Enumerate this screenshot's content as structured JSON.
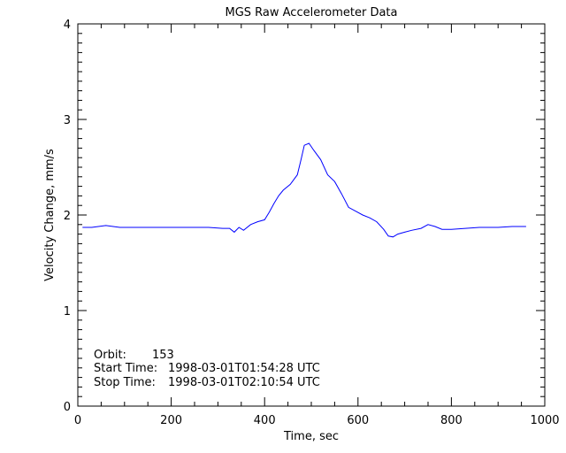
{
  "chart_data": {
    "type": "line",
    "title": "MGS Raw Accelerometer Data",
    "xlabel": "Time, sec",
    "ylabel": "Velocity Change, mm/s",
    "xlim": [
      0,
      1000
    ],
    "ylim": [
      0,
      4
    ],
    "xticks": [
      "0",
      "200",
      "400",
      "600",
      "800",
      "1000"
    ],
    "yticks": [
      "0",
      "1",
      "2",
      "3",
      "4"
    ],
    "grid": false,
    "line_color": "#0000ff",
    "series": [
      {
        "x": [
          10,
          30,
          60,
          90,
          120,
          160,
          200,
          240,
          280,
          310,
          325,
          335,
          345,
          355,
          370,
          385,
          400,
          410,
          420,
          430,
          440,
          455,
          470,
          478,
          485,
          495,
          505,
          520,
          535,
          550,
          565,
          580,
          595,
          610,
          625,
          640,
          655,
          665,
          675,
          685,
          700,
          715,
          735,
          750,
          765,
          780,
          800,
          830,
          860,
          900,
          930,
          960
        ],
        "y": [
          1.87,
          1.87,
          1.89,
          1.87,
          1.87,
          1.87,
          1.87,
          1.87,
          1.87,
          1.86,
          1.86,
          1.82,
          1.87,
          1.84,
          1.9,
          1.93,
          1.95,
          2.03,
          2.12,
          2.2,
          2.26,
          2.32,
          2.42,
          2.58,
          2.73,
          2.75,
          2.68,
          2.58,
          2.42,
          2.35,
          2.22,
          2.08,
          2.04,
          2.0,
          1.97,
          1.93,
          1.85,
          1.78,
          1.77,
          1.8,
          1.82,
          1.84,
          1.86,
          1.9,
          1.88,
          1.85,
          1.85,
          1.86,
          1.87,
          1.87,
          1.88,
          1.88
        ]
      }
    ],
    "annotations": [
      {
        "label": "Orbit:",
        "value": "153"
      },
      {
        "label": "Start Time:",
        "value": "1998-03-01T01:54:28 UTC"
      },
      {
        "label": "Stop Time:",
        "value": "1998-03-01T02:10:54 UTC"
      }
    ]
  }
}
